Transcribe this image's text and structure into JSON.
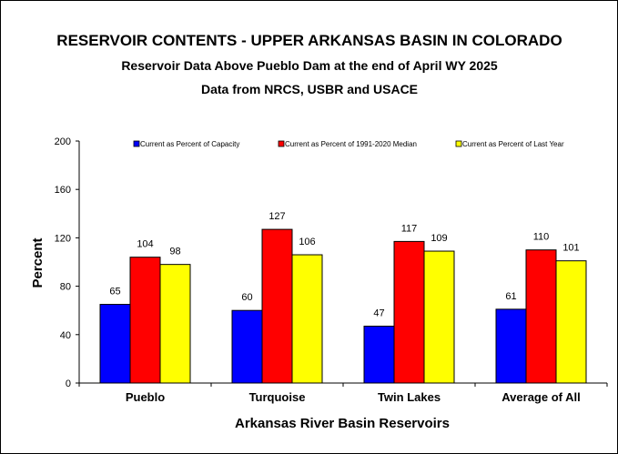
{
  "chart_data": {
    "type": "bar",
    "title": "RESERVOIR CONTENTS - UPPER ARKANSAS BASIN IN COLORADO",
    "subtitle": "Reservoir Data Above Pueblo Dam at the end of April WY 2025",
    "subtitle2": "Data from NRCS, USBR and USACE",
    "xlabel": "Arkansas River Basin Reservoirs",
    "ylabel": "Percent",
    "categories": [
      "Pueblo",
      "Turquoise",
      "Twin Lakes",
      "Average of All"
    ],
    "ylim": [
      0,
      200
    ],
    "yticks": [
      0,
      40,
      80,
      120,
      160,
      200
    ],
    "grid": false,
    "legend_position": "top",
    "series": [
      {
        "name": "Current as Percent of Capacity",
        "color": "#0000ff",
        "values": [
          65,
          60,
          47,
          61
        ]
      },
      {
        "name": "Current as Percent of 1991-2020 Median",
        "color": "#ff0000",
        "values": [
          104,
          127,
          117,
          110
        ]
      },
      {
        "name": "Current as Percent of Last Year",
        "color": "#ffff00",
        "values": [
          98,
          106,
          109,
          101
        ]
      }
    ]
  }
}
